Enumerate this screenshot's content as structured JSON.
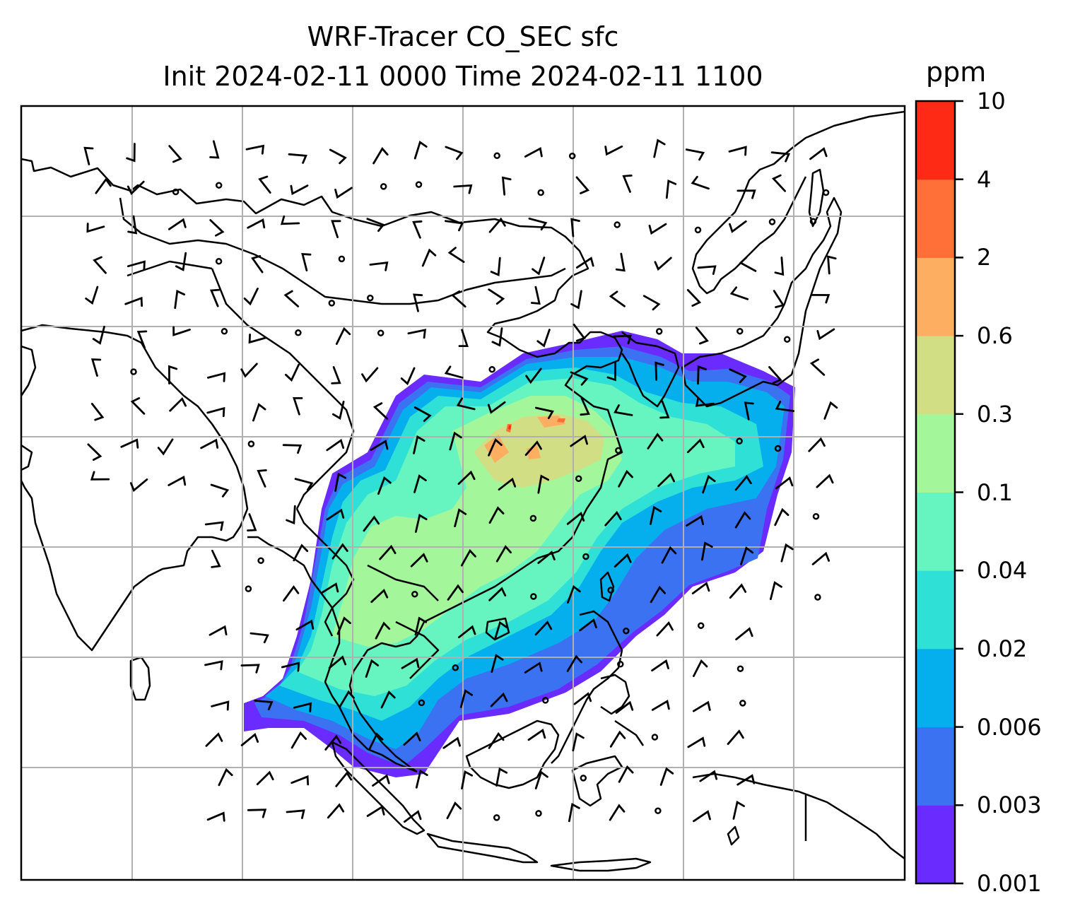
{
  "title": {
    "line1": "WRF-Tracer CO_SEC sfc",
    "line2": "Init 2024-02-11 0000 Time 2024-02-11 1100"
  },
  "colorbar": {
    "unit": "ppm",
    "levels": [
      "0.001",
      "0.003",
      "0.006",
      "0.02",
      "0.04",
      "0.1",
      "0.3",
      "0.6",
      "2",
      "4",
      "10"
    ],
    "colors": [
      "#6a2bff",
      "#3a72f2",
      "#05aeed",
      "#2fe0d6",
      "#66f5c1",
      "#a3f79a",
      "#d2de84",
      "#fdae61",
      "#ff7038",
      "#ff2a16"
    ]
  },
  "map": {
    "gridlines": true,
    "coastline_color": "#000000",
    "grid_color": "#b0b0b0"
  }
}
